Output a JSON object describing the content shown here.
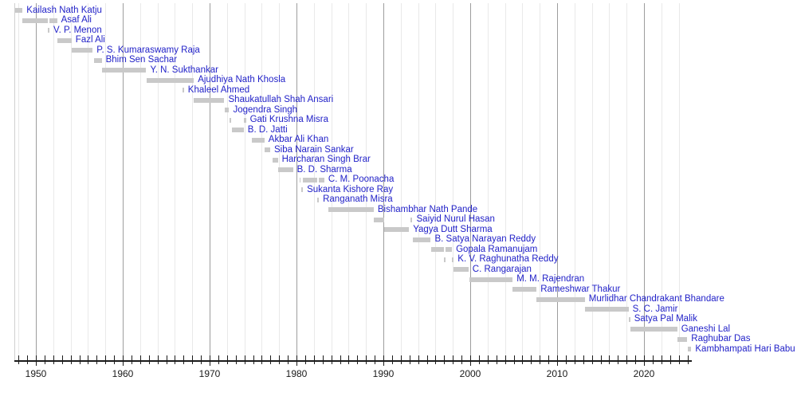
{
  "chart_data": {
    "type": "bar",
    "subtype": "horizontal-timeline-gantt",
    "title": "",
    "xlabel": "",
    "ylabel": "",
    "x_axis": {
      "range": [
        1947.5,
        2025.5
      ],
      "tick_labels": [
        "1950",
        "1960",
        "1970",
        "1980",
        "1990",
        "2000",
        "2010",
        "2020"
      ],
      "tick_values": [
        1950,
        1960,
        1970,
        1980,
        1990,
        2000,
        2010,
        2020
      ],
      "minor_grid_step_years": 2,
      "minor_grid_first_year": 1948,
      "minor_grid_last_year": 2024,
      "small_tick_step_years": 1,
      "grid": "on",
      "legend": "none"
    },
    "bar_style": {
      "bar_color": "#c9c9c9",
      "label_color": "#2222c8",
      "grid_minor_color": "#e9e9e9",
      "grid_major_color": "#9d9d9d",
      "axis_color": "#1a1a1a",
      "background_color": "#ffffff"
    },
    "series": [
      {
        "name": "Kailash Nath Katju",
        "terms": [
          [
            1947.62,
            1948.47
          ]
        ]
      },
      {
        "name": "Asaf Ali",
        "terms": [
          [
            1948.47,
            1951.34
          ],
          [
            1951.56,
            1952.44
          ]
        ]
      },
      {
        "name": "V. P. Menon",
        "terms": [
          [
            1951.34,
            1951.56
          ]
        ]
      },
      {
        "name": "Fazl Ali",
        "terms": [
          [
            1952.44,
            1954.11
          ]
        ]
      },
      {
        "name": "P. S. Kumaraswamy Raja",
        "terms": [
          [
            1954.11,
            1956.54
          ]
        ]
      },
      {
        "name": "Bhim Sen Sachar",
        "terms": [
          [
            1956.7,
            1957.58
          ]
        ]
      },
      {
        "name": "Y. N. Sukthankar",
        "terms": [
          [
            1957.58,
            1962.71
          ]
        ]
      },
      {
        "name": "Ajudhiya Nath Khosla",
        "terms": [
          [
            1962.71,
            1968.18
          ]
        ]
      },
      {
        "name": "Khaleel Ahmed",
        "terms": [
          [
            1966.85,
            1967.05
          ]
        ]
      },
      {
        "name": "Shaukatullah Shah Ansari",
        "terms": [
          [
            1968.2,
            1971.7
          ]
        ]
      },
      {
        "name": "Jogendra Singh",
        "terms": [
          [
            1971.72,
            1972.25
          ]
        ]
      },
      {
        "name": "Gati Krushna Misra",
        "terms": [
          [
            1972.27,
            1972.5
          ],
          [
            1973.95,
            1974.18
          ]
        ]
      },
      {
        "name": "B. D. Jatti",
        "terms": [
          [
            1972.52,
            1973.93
          ]
        ]
      },
      {
        "name": "Akbar Ali Khan",
        "terms": [
          [
            1974.82,
            1976.31
          ]
        ]
      },
      {
        "name": "Siba Narain Sankar",
        "terms": [
          [
            1976.31,
            1976.97
          ]
        ]
      },
      {
        "name": "Harcharan Singh Brar",
        "terms": [
          [
            1977.25,
            1977.85
          ]
        ]
      },
      {
        "name": "B. D. Sharma",
        "terms": [
          [
            1977.88,
            1979.6
          ]
        ]
      },
      {
        "name": "C. M. Poonacha",
        "terms": [
          [
            1980.33,
            1980.5
          ],
          [
            1980.76,
            1982.38
          ],
          [
            1982.6,
            1983.2
          ]
        ]
      },
      {
        "name": "Sukanta Kishore Ray",
        "terms": [
          [
            1980.52,
            1980.74
          ]
        ]
      },
      {
        "name": "Ranganath Misra",
        "terms": [
          [
            1982.4,
            1982.58
          ]
        ]
      },
      {
        "name": "Bishambhar Nath Pande",
        "terms": [
          [
            1983.65,
            1988.89
          ]
        ]
      },
      {
        "name": "Saiyid Nurul Hasan",
        "terms": [
          [
            1988.89,
            1990.1
          ],
          [
            1993.08,
            1993.35
          ]
        ]
      },
      {
        "name": "Yagya Dutt Sharma",
        "terms": [
          [
            1990.1,
            1992.95
          ]
        ]
      },
      {
        "name": "B. Satya Narayan Reddy",
        "terms": [
          [
            1993.42,
            1995.46
          ]
        ]
      },
      {
        "name": "Gopala Ramanujam",
        "terms": [
          [
            1995.46,
            1996.95
          ],
          [
            1997.15,
            1997.9
          ]
        ]
      },
      {
        "name": "K. V. Raghunatha Reddy",
        "terms": [
          [
            1996.95,
            1997.15
          ],
          [
            1997.9,
            1998.1
          ]
        ]
      },
      {
        "name": "C. Rangarajan",
        "terms": [
          [
            1998.1,
            1999.8
          ]
        ]
      },
      {
        "name": "M. M. Rajendran",
        "terms": [
          [
            1999.87,
            2004.88
          ]
        ]
      },
      {
        "name": "Rameshwar Thakur",
        "terms": [
          [
            2004.88,
            2007.63
          ]
        ]
      },
      {
        "name": "Murlidhar Chandrakant Bhandare",
        "terms": [
          [
            2007.64,
            2013.19
          ]
        ]
      },
      {
        "name": "S. C. Jamir",
        "terms": [
          [
            2013.22,
            2018.22
          ]
        ]
      },
      {
        "name": "Satya Pal Malik",
        "terms": [
          [
            2018.22,
            2018.41
          ]
        ]
      },
      {
        "name": "Ganeshi Lal",
        "terms": [
          [
            2018.41,
            2023.83
          ]
        ]
      },
      {
        "name": "Raghubar Das",
        "terms": [
          [
            2023.83,
            2024.98
          ]
        ]
      },
      {
        "name": "Kambhampati Hari Babu",
        "terms": [
          [
            2025.01,
            2025.45
          ]
        ]
      }
    ]
  }
}
